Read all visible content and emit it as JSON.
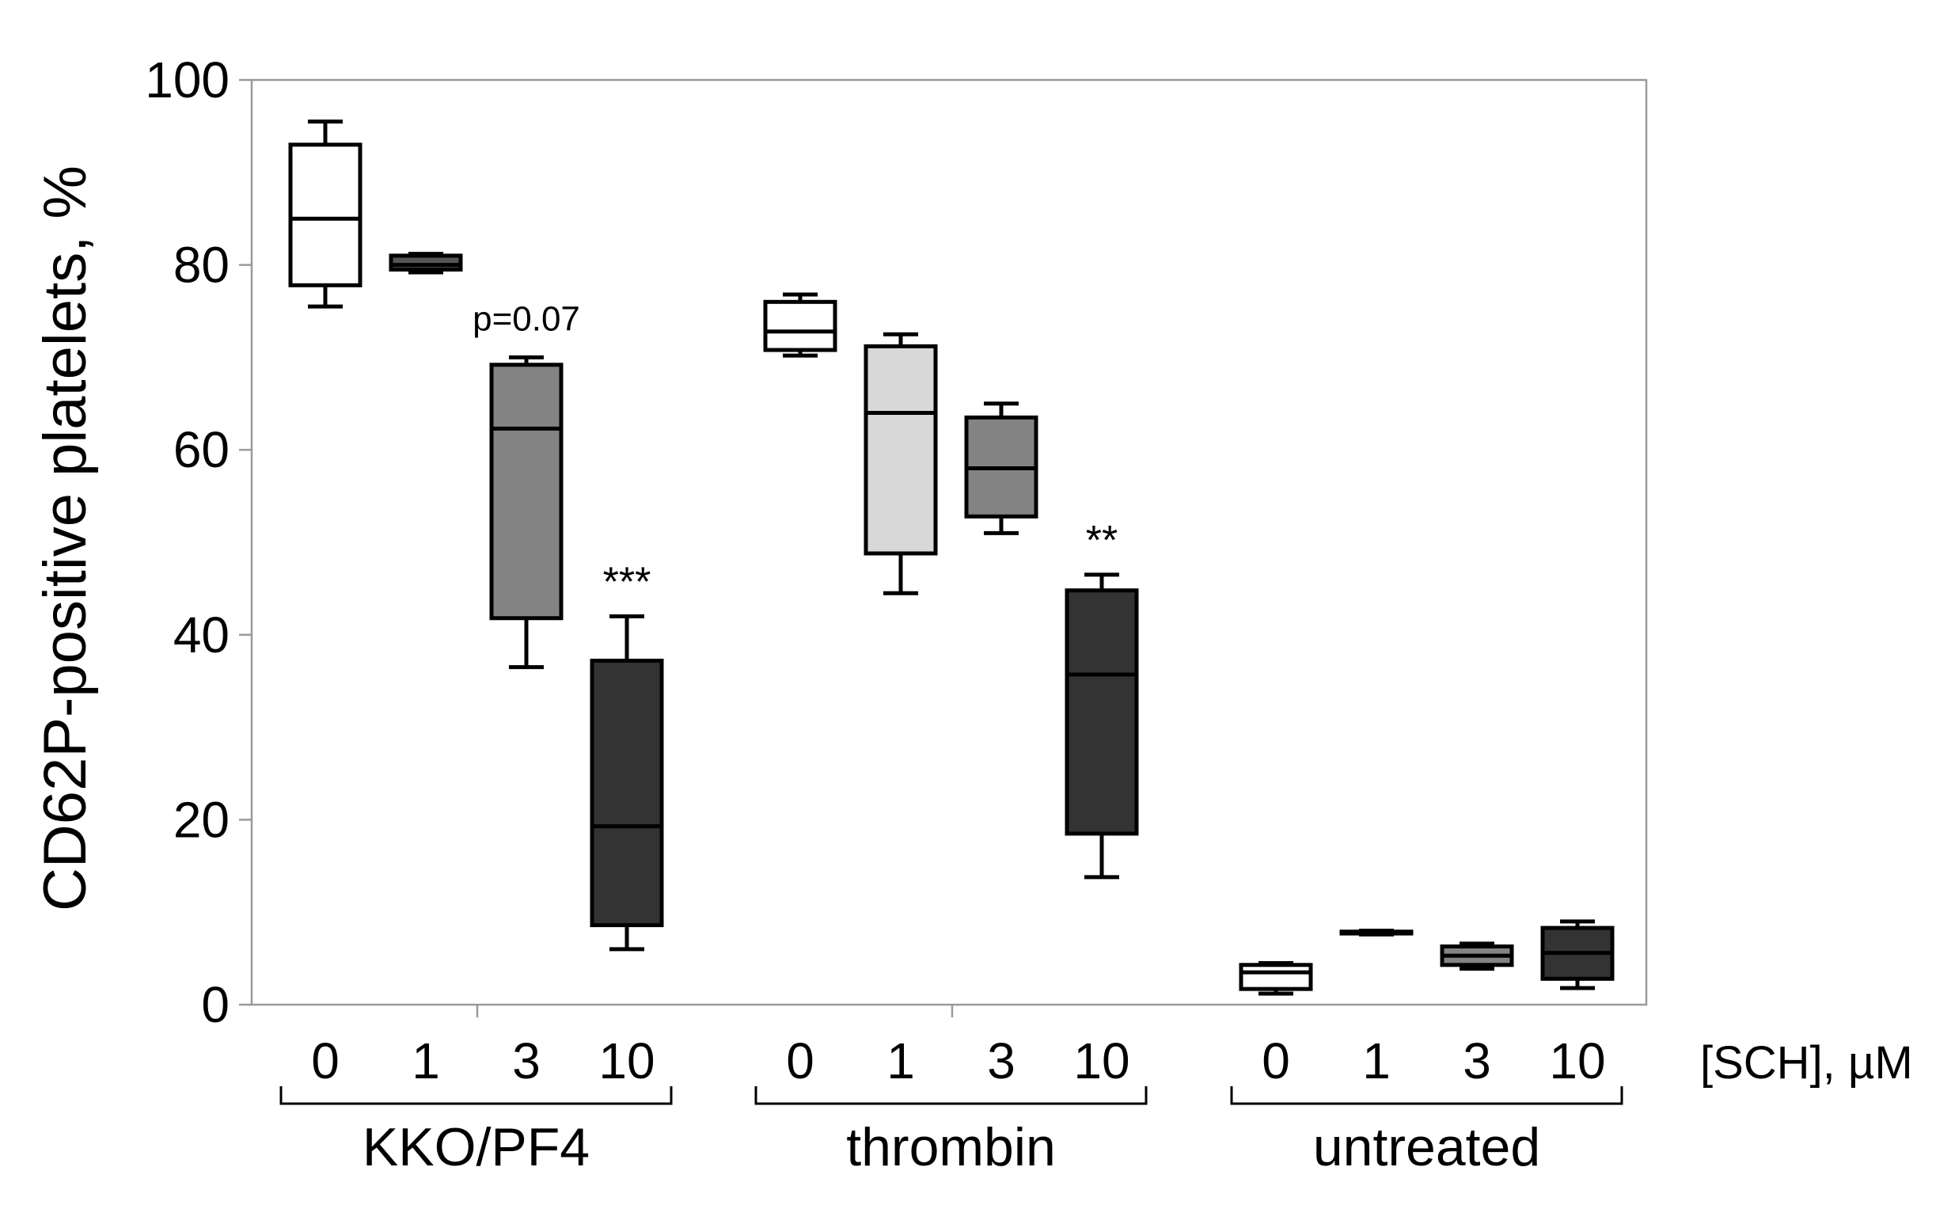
{
  "chart_data": {
    "type": "boxplot",
    "title": "",
    "ylabel": "CD62P-positive platelets, %",
    "xlabel": "[SCH], µM",
    "ylim": [
      0,
      100
    ],
    "yticks": [
      "0",
      "20",
      "40",
      "60",
      "80",
      "100"
    ],
    "grid": false,
    "groups": [
      {
        "label": "KKO/PF4",
        "boxes": [
          {
            "category": "0",
            "fill": "#ffffff",
            "whisker_low": 75.5,
            "q1": 77.8,
            "median": 85.0,
            "q3": 93.0,
            "whisker_high": 95.5
          },
          {
            "category": "1",
            "fill": "#555555",
            "whisker_low": 79.2,
            "q1": 79.5,
            "median": 80.0,
            "q3": 81.0,
            "whisker_high": 81.2
          },
          {
            "category": "3",
            "fill": "#838383",
            "whisker_low": 36.5,
            "q1": 41.8,
            "median": 62.3,
            "q3": 69.2,
            "whisker_high": 70.0,
            "annotation": "p=0.07"
          },
          {
            "category": "10",
            "fill": "#333333",
            "whisker_low": 6.0,
            "q1": 8.6,
            "median": 19.3,
            "q3": 37.2,
            "whisker_high": 42.0,
            "annotation": "***"
          }
        ]
      },
      {
        "label": "thrombin",
        "boxes": [
          {
            "category": "0",
            "fill": "#ffffff",
            "whisker_low": 70.2,
            "q1": 70.8,
            "median": 72.8,
            "q3": 76.0,
            "whisker_high": 76.8
          },
          {
            "category": "1",
            "fill": "#d8d8d8",
            "whisker_low": 44.5,
            "q1": 48.8,
            "median": 64.0,
            "q3": 71.2,
            "whisker_high": 72.5
          },
          {
            "category": "3",
            "fill": "#838383",
            "whisker_low": 51.0,
            "q1": 52.8,
            "median": 58.0,
            "q3": 63.5,
            "whisker_high": 65.0
          },
          {
            "category": "10",
            "fill": "#333333",
            "whisker_low": 13.8,
            "q1": 18.5,
            "median": 35.7,
            "q3": 44.8,
            "whisker_high": 46.5,
            "annotation": "**"
          }
        ]
      },
      {
        "label": "untreated",
        "boxes": [
          {
            "category": "0",
            "fill": "#ffffff",
            "whisker_low": 1.2,
            "q1": 1.7,
            "median": 3.5,
            "q3": 4.3,
            "whisker_high": 4.5
          },
          {
            "category": "1",
            "fill": "#555555",
            "whisker_low": 7.6,
            "q1": 7.7,
            "median": 7.8,
            "q3": 7.9,
            "whisker_high": 8.0
          },
          {
            "category": "3",
            "fill": "#838383",
            "whisker_low": 3.9,
            "q1": 4.3,
            "median": 5.3,
            "q3": 6.3,
            "whisker_high": 6.6
          },
          {
            "category": "10",
            "fill": "#333333",
            "whisker_low": 1.8,
            "q1": 2.8,
            "median": 5.6,
            "q3": 8.3,
            "whisker_high": 9.0
          }
        ]
      }
    ]
  }
}
